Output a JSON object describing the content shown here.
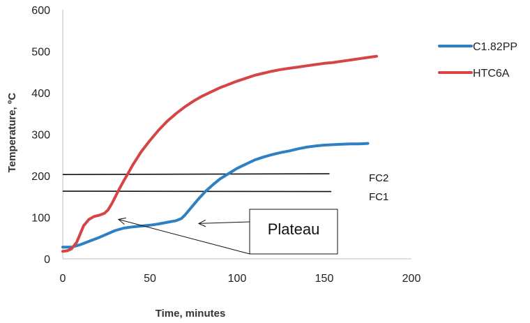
{
  "chart_data": {
    "type": "line",
    "title": "",
    "xlabel": "Time, minutes",
    "ylabel": "Temperature, ºC",
    "xlim": [
      0,
      200
    ],
    "ylim": [
      0,
      600
    ],
    "x_ticks": [
      "0",
      "50",
      "100",
      "150",
      "200"
    ],
    "y_ticks": [
      "0",
      "100",
      "200",
      "300",
      "400",
      "500",
      "600"
    ],
    "grid": false,
    "legend_position": "right",
    "series": [
      {
        "name": "C1.82PP",
        "color": "#2e7fc4",
        "points": [
          [
            0,
            28
          ],
          [
            5,
            28
          ],
          [
            10,
            34
          ],
          [
            15,
            42
          ],
          [
            20,
            50
          ],
          [
            25,
            59
          ],
          [
            30,
            68
          ],
          [
            35,
            74
          ],
          [
            40,
            77
          ],
          [
            45,
            79
          ],
          [
            50,
            81
          ],
          [
            55,
            84
          ],
          [
            60,
            88
          ],
          [
            65,
            92
          ],
          [
            68,
            97
          ],
          [
            70,
            105
          ],
          [
            72,
            115
          ],
          [
            75,
            130
          ],
          [
            78,
            145
          ],
          [
            82,
            163
          ],
          [
            86,
            178
          ],
          [
            90,
            192
          ],
          [
            95,
            205
          ],
          [
            100,
            218
          ],
          [
            105,
            228
          ],
          [
            110,
            238
          ],
          [
            115,
            245
          ],
          [
            120,
            251
          ],
          [
            125,
            256
          ],
          [
            130,
            260
          ],
          [
            135,
            265
          ],
          [
            140,
            269
          ],
          [
            145,
            272
          ],
          [
            150,
            274
          ],
          [
            155,
            275
          ],
          [
            160,
            276
          ],
          [
            165,
            277
          ],
          [
            170,
            277
          ],
          [
            175,
            278
          ]
        ]
      },
      {
        "name": "HTC6A",
        "color": "#d64545",
        "points": [
          [
            0,
            18
          ],
          [
            3,
            20
          ],
          [
            5,
            24
          ],
          [
            8,
            40
          ],
          [
            10,
            60
          ],
          [
            12,
            80
          ],
          [
            15,
            95
          ],
          [
            18,
            102
          ],
          [
            21,
            105
          ],
          [
            24,
            110
          ],
          [
            26,
            118
          ],
          [
            28,
            132
          ],
          [
            30,
            148
          ],
          [
            32,
            165
          ],
          [
            35,
            188
          ],
          [
            38,
            210
          ],
          [
            40,
            225
          ],
          [
            45,
            258
          ],
          [
            50,
            285
          ],
          [
            55,
            310
          ],
          [
            60,
            332
          ],
          [
            65,
            350
          ],
          [
            70,
            366
          ],
          [
            75,
            380
          ],
          [
            80,
            392
          ],
          [
            85,
            402
          ],
          [
            90,
            412
          ],
          [
            95,
            420
          ],
          [
            100,
            428
          ],
          [
            105,
            435
          ],
          [
            110,
            442
          ],
          [
            115,
            447
          ],
          [
            120,
            452
          ],
          [
            125,
            456
          ],
          [
            130,
            459
          ],
          [
            135,
            462
          ],
          [
            140,
            465
          ],
          [
            145,
            468
          ],
          [
            150,
            471
          ],
          [
            155,
            473
          ],
          [
            160,
            476
          ],
          [
            165,
            479
          ],
          [
            170,
            482
          ],
          [
            175,
            485
          ],
          [
            180,
            488
          ]
        ]
      }
    ],
    "reference_lines": [
      {
        "label": "FC2",
        "x_start": 0,
        "x_end": 153,
        "y_start": 203,
        "y_end": 205
      },
      {
        "label": "FC1",
        "x_start": 0,
        "x_end": 154,
        "y_start": 163,
        "y_end": 162
      }
    ],
    "annotations": [
      {
        "text": "Plateau",
        "arrows_point_to": [
          [
            32,
            95
          ],
          [
            78,
            85
          ]
        ]
      }
    ]
  }
}
